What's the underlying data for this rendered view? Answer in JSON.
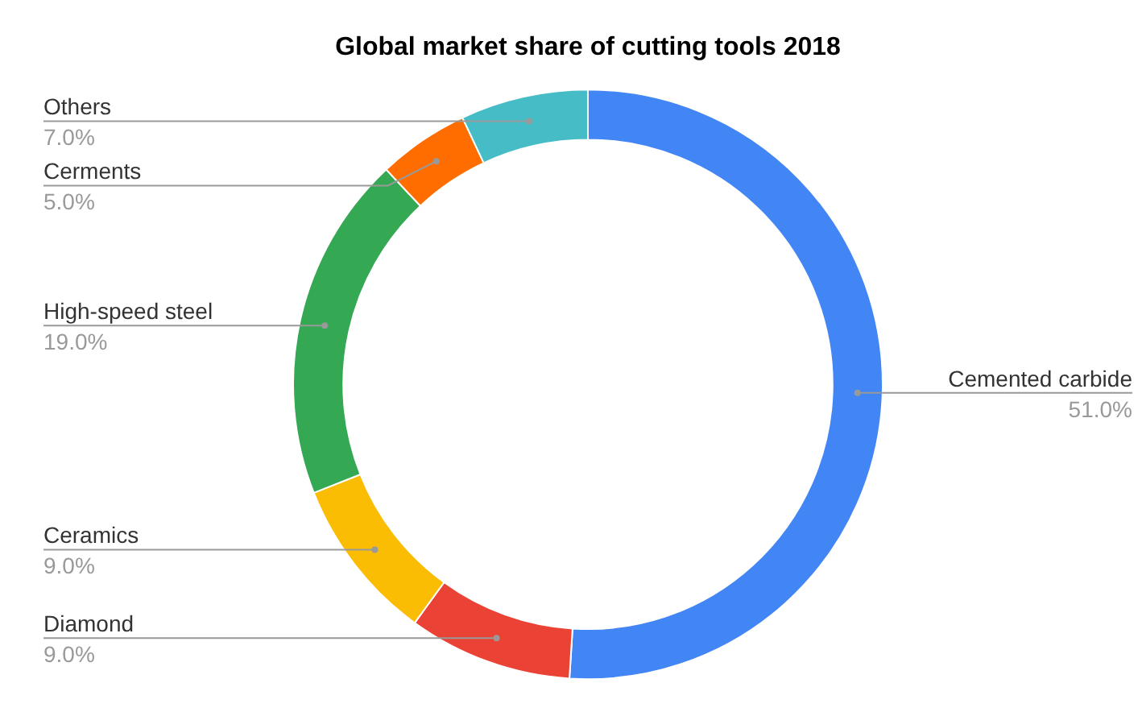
{
  "chart_data": {
    "type": "donut",
    "title": "Global market share of cutting tools 2018",
    "categories": [
      "Cemented carbide",
      "Diamond",
      "Ceramics",
      "High-speed steel",
      "Cerments",
      "Others"
    ],
    "values": [
      51,
      9,
      9,
      19,
      5,
      7
    ],
    "value_labels": [
      "51.0%",
      "9.0%",
      "9.0%",
      "19.0%",
      "5.0%",
      "7.0%"
    ],
    "colors": [
      "#4285f4",
      "#ea4335",
      "#fbbc04",
      "#34a853",
      "#ff6d01",
      "#46bdc6"
    ],
    "legend": false
  }
}
